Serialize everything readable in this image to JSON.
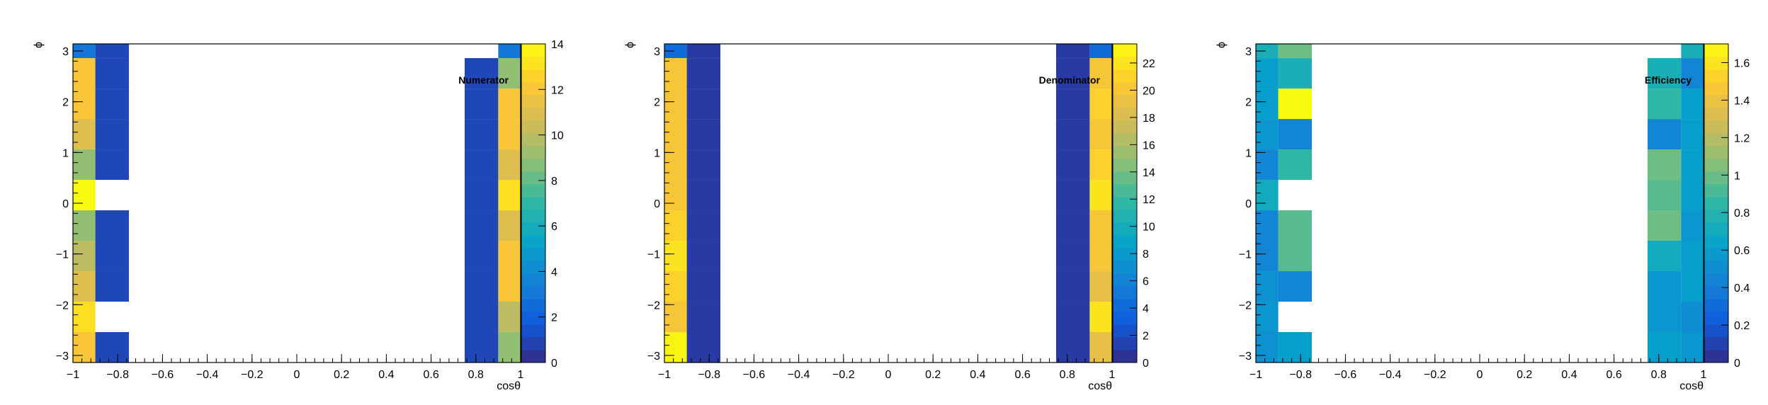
{
  "palette": {
    "stops": [
      "#352a87",
      "#0f5cdd",
      "#1481d6",
      "#06a4ca",
      "#2eb7a4",
      "#87bf77",
      "#d1bb59",
      "#fec832",
      "#f9fb0e"
    ],
    "frame": "#000000"
  },
  "chart_data": [
    {
      "type": "heatmap",
      "title": "Numerator",
      "xlabel": "cosθ",
      "ylabel": "ϕ",
      "xlim": [
        -1,
        1
      ],
      "ylim": [
        -3.14,
        3.14
      ],
      "xticks": [
        "−1",
        "−0.8",
        "−0.6",
        "−0.4",
        "−0.2",
        "0",
        "0.2",
        "0.4",
        "0.6",
        "0.8",
        "1"
      ],
      "yticks": [
        "−3",
        "−2",
        "−1",
        "0",
        "1",
        "2",
        "3"
      ],
      "zlim": [
        0,
        14
      ],
      "zticks": [
        "0",
        "2",
        "4",
        "6",
        "8",
        "10",
        "12",
        "14"
      ],
      "x_edges": [
        -1.0,
        -0.9,
        -0.75,
        0.75,
        0.9,
        1.0
      ],
      "y_edges": [
        -3.14,
        -2.54,
        -1.94,
        -1.34,
        -0.74,
        -0.14,
        0.46,
        1.06,
        1.66,
        2.26,
        2.86,
        3.14
      ],
      "values": [
        [
          12,
          1,
          null,
          1,
          9
        ],
        [
          13,
          null,
          null,
          1,
          10
        ],
        [
          11,
          1,
          null,
          1,
          12
        ],
        [
          10,
          1,
          null,
          1,
          12
        ],
        [
          9,
          1,
          null,
          1,
          11
        ],
        [
          14,
          null,
          null,
          1,
          13
        ],
        [
          9,
          1,
          null,
          1,
          11
        ],
        [
          11,
          1,
          null,
          1,
          12
        ],
        [
          12,
          1,
          null,
          1,
          12
        ],
        [
          12,
          1,
          null,
          1,
          9
        ],
        [
          3,
          1,
          null,
          null,
          3
        ]
      ]
    },
    {
      "type": "heatmap",
      "title": "Denominator",
      "xlabel": "cosθ",
      "ylabel": "ϕ",
      "xlim": [
        -1,
        1
      ],
      "ylim": [
        -3.14,
        3.14
      ],
      "xticks": [
        "−1",
        "−0.8",
        "−0.6",
        "−0.4",
        "−0.2",
        "0",
        "0.2",
        "0.4",
        "0.6",
        "0.8",
        "1"
      ],
      "yticks": [
        "−3",
        "−2",
        "−1",
        "0",
        "1",
        "2",
        "3"
      ],
      "zlim": [
        0,
        23.4
      ],
      "zticks": [
        "0",
        "2",
        "4",
        "6",
        "8",
        "10",
        "12",
        "14",
        "16",
        "18",
        "20",
        "22"
      ],
      "x_edges": [
        -1.0,
        -0.9,
        -0.75,
        0.75,
        0.9,
        1.0
      ],
      "y_edges": [
        -3.14,
        -2.54,
        -1.94,
        -1.34,
        -0.74,
        -0.14,
        0.46,
        1.06,
        1.66,
        2.26,
        2.86,
        3.14
      ],
      "values": [
        [
          23,
          1,
          null,
          1,
          19
        ],
        [
          20,
          1,
          null,
          1,
          22
        ],
        [
          21,
          1,
          null,
          1,
          19
        ],
        [
          22,
          1,
          null,
          1,
          20
        ],
        [
          21,
          1,
          null,
          1,
          20
        ],
        [
          20,
          1,
          null,
          1,
          22
        ],
        [
          20,
          1,
          null,
          1,
          21
        ],
        [
          20,
          1,
          null,
          1,
          20
        ],
        [
          20,
          1,
          null,
          1,
          21
        ],
        [
          20,
          1,
          null,
          1,
          20
        ],
        [
          4,
          1,
          null,
          1,
          4
        ]
      ]
    },
    {
      "type": "heatmap",
      "title": "Efficiency",
      "xlabel": "cosθ",
      "ylabel": "ϕ",
      "xlim": [
        -1,
        1
      ],
      "ylim": [
        -3.14,
        3.14
      ],
      "xticks": [
        "−1",
        "−0.8",
        "−0.6",
        "−0.4",
        "−0.2",
        "0",
        "0.2",
        "0.4",
        "0.6",
        "0.8",
        "1"
      ],
      "yticks": [
        "−3",
        "−2",
        "−1",
        "0",
        "1",
        "2",
        "3"
      ],
      "zlim": [
        0,
        1.7
      ],
      "zticks": [
        "0",
        "0.2",
        "0.4",
        "0.6",
        "0.8",
        "1",
        "1.2",
        "1.4",
        "1.6"
      ],
      "x_edges": [
        -1.0,
        -0.9,
        -0.75,
        0.75,
        0.9,
        1.0
      ],
      "y_edges": [
        -3.14,
        -2.54,
        -1.94,
        -1.34,
        -0.74,
        -0.14,
        0.46,
        1.06,
        1.66,
        2.26,
        2.86,
        3.14
      ],
      "values": [
        [
          0.52,
          0.6,
          null,
          0.6,
          0.55
        ],
        [
          0.55,
          null,
          null,
          0.55,
          0.5
        ],
        [
          0.52,
          0.45,
          null,
          0.55,
          0.6
        ],
        [
          0.45,
          0.95,
          null,
          0.7,
          0.6
        ],
        [
          0.45,
          0.95,
          null,
          1.0,
          0.55
        ],
        [
          0.7,
          null,
          null,
          0.95,
          0.6
        ],
        [
          0.45,
          0.85,
          null,
          1.0,
          0.6
        ],
        [
          0.55,
          0.45,
          null,
          0.45,
          0.6
        ],
        [
          0.6,
          1.7,
          null,
          0.85,
          0.6
        ],
        [
          0.6,
          0.75,
          null,
          0.75,
          0.45
        ],
        [
          0.75,
          1.0,
          null,
          null,
          0.75
        ]
      ]
    }
  ]
}
